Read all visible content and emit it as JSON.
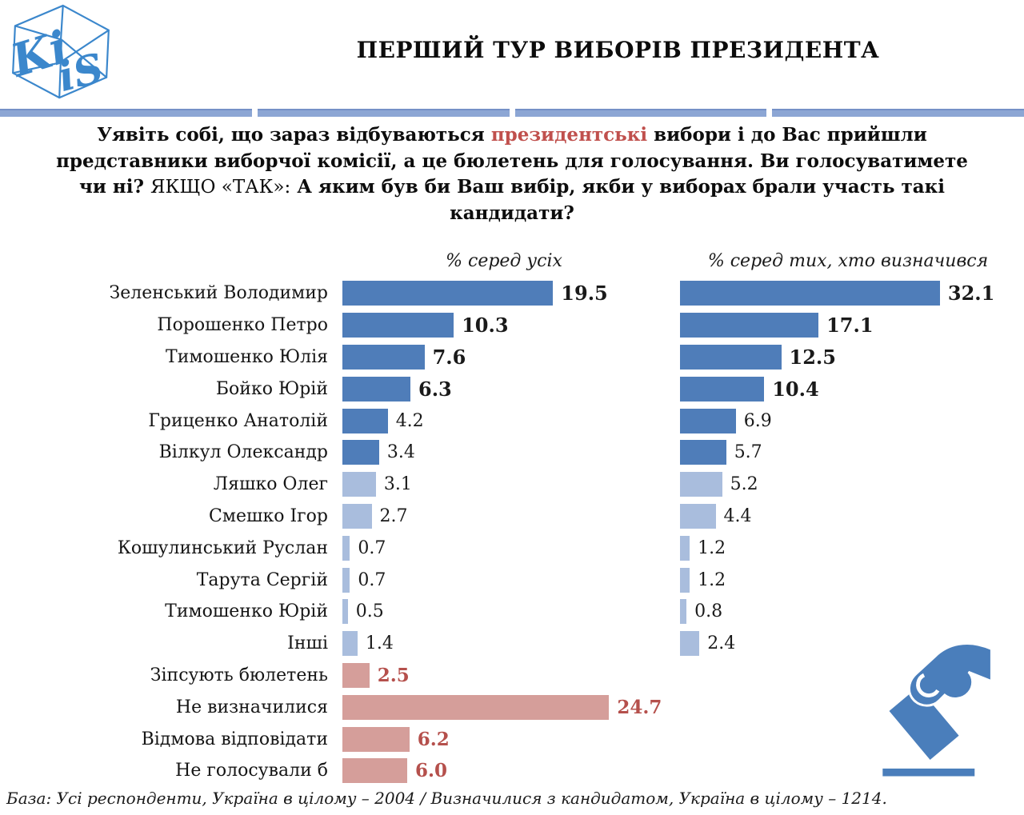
{
  "logo": {
    "top_text": "Ki",
    "bottom_text": "iS"
  },
  "title": "ПЕРШИЙ ТУР ВИБОРІВ ПРЕЗИДЕНТА",
  "question": {
    "part1": "Уявіть собі, що зараз відбуваються ",
    "highlight": "президентські",
    "part2": " вибори і до Вас прийшли представники виборчої комісії, а це бюлетень для голосування. Ви голосуватимете чи ні? ",
    "plain": "ЯКЩО «ТАК»:",
    "part3": " А яким був би Ваш вибір, якби у виборах брали участь такі кандидати?"
  },
  "chart_data": {
    "type": "bar",
    "orientation": "horizontal",
    "left_title": "% серед усіх",
    "right_title": "% серед тих, хто визначився",
    "categories": [
      "Зеленський Володимир",
      "Порошенко Петро",
      "Тимошенко Юлія",
      "Бойко Юрій",
      "Гриценко Анатолій",
      "Вілкул Олександр",
      "Ляшко Олег",
      "Смешко Ігор",
      "Кошулинський Руслан",
      "Тарута Сергій",
      "Тимошенко Юрій",
      "Інші",
      "Зіпсують бюлетень",
      "Не визначилися",
      "Відмова відповідати",
      "Не голосували б"
    ],
    "series": [
      {
        "name": "% серед усіх",
        "values": [
          19.5,
          10.3,
          7.6,
          6.3,
          4.2,
          3.4,
          3.1,
          2.7,
          0.7,
          0.7,
          0.5,
          1.4,
          2.5,
          24.7,
          6.2,
          6.0
        ]
      },
      {
        "name": "% серед тих, хто визначився",
        "values": [
          32.1,
          17.1,
          12.5,
          10.4,
          6.9,
          5.7,
          5.2,
          4.4,
          1.2,
          1.2,
          0.8,
          2.4,
          null,
          null,
          null,
          null
        ]
      }
    ],
    "row_tones": [
      "dark",
      "dark",
      "dark",
      "dark",
      "dark",
      "dark",
      "light",
      "light",
      "light",
      "light",
      "light",
      "light",
      "salmon",
      "salmon",
      "salmon",
      "salmon"
    ],
    "bold_value_rows": [
      0,
      1,
      2,
      3,
      12,
      13,
      14,
      15
    ],
    "value_decimals": 1,
    "colors": {
      "dark_blue": "#4f7db9",
      "light_blue": "#a9bddd",
      "salmon": "#d59e9a",
      "value_red": "#b5504c",
      "highlight_red": "#c0504d",
      "divider_blue": "#8ca6d4",
      "logo_blue": "#3b87cc"
    },
    "legend_position": "none",
    "grid": false
  },
  "footer": "База: Усі респонденти, Україна в цілому – 2004 / Визначилися з кандидатом, Україна в цілому – 1214."
}
